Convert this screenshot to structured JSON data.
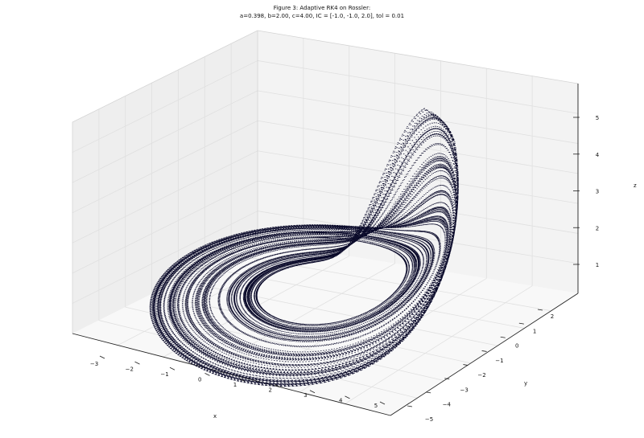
{
  "chart_data": {
    "type": "scatter",
    "title": "Figure 3: Adaptive RK4 on Rossler:",
    "subtitle": "a=0.398, b=2.00, c=4.00, IC = [-1.0, -1.0, 2.0], tol = 0.01",
    "xlabel": "x",
    "ylabel": "y",
    "zlabel": "z",
    "xticks": [
      "−3",
      "−2",
      "−1",
      "0",
      "1",
      "2",
      "3",
      "4",
      "5"
    ],
    "yticks": [
      "−5",
      "−4",
      "−3",
      "−2",
      "−1",
      "0",
      "1",
      "2"
    ],
    "zticks": [
      "1",
      "2",
      "3",
      "4",
      "5"
    ],
    "xlim": [
      -3,
      5
    ],
    "ylim": [
      -5,
      2
    ],
    "zlim": [
      0.5,
      5.5
    ],
    "grid": true,
    "point_color": "#0a0a2a",
    "parameters": {
      "a": 0.398,
      "b": 2.0,
      "c": 4.0,
      "ic": [
        -1.0,
        -1.0,
        2.0
      ],
      "tol": 0.01
    }
  },
  "colors": {
    "pane_back": "#efefef",
    "pane_side": "#f4f4f4",
    "pane_floor": "#f7f7f7",
    "grid": "#e0e0e0",
    "axis": "#222222"
  }
}
